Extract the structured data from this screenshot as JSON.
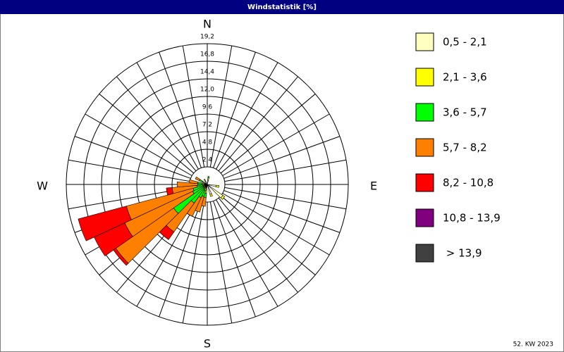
{
  "chart_data": {
    "type": "windrose",
    "title": "Windstatistik [%]",
    "footer": "52. KW 2023",
    "directions": {
      "north": "N",
      "east": "E",
      "south": "S",
      "west": "W"
    },
    "x": [
      10,
      100,
      130,
      160,
      190,
      200,
      210,
      220,
      230,
      240,
      250,
      260,
      270,
      280,
      300,
      330
    ],
    "sector_width": 10,
    "rlim": [
      0,
      19.2
    ],
    "rticks": [
      {
        "value": 2.4,
        "label": "2,4"
      },
      {
        "value": 4.8,
        "label": "4,8"
      },
      {
        "value": 7.2,
        "label": "7,2"
      },
      {
        "value": 9.6,
        "label": "9,6"
      },
      {
        "value": 12.0,
        "label": "12,0"
      },
      {
        "value": 14.4,
        "label": "14,4"
      },
      {
        "value": 16.8,
        "label": "16,8"
      },
      {
        "value": 19.2,
        "label": "19,2"
      }
    ],
    "spokes": 36,
    "series": [
      {
        "name": "0,5 - 2,1",
        "color": "#ffffc0",
        "values": [
          0.6,
          1.2,
          2.6,
          1.4,
          0.8,
          0.5,
          0.4,
          0.3,
          0.3,
          0.3,
          0.3,
          0.3,
          0.4,
          0.4,
          0.4,
          0.5
        ]
      },
      {
        "name": "2,1 - 3,6",
        "color": "#ffff00",
        "values": [
          0.3,
          0.4,
          0.3,
          0.3,
          0.4,
          0.4,
          0.4,
          0.4,
          0.3,
          0.3,
          0.3,
          0.3,
          0.3,
          0.3,
          0.3,
          0.3
        ]
      },
      {
        "name": "3,6 - 5,7",
        "color": "#00ff00",
        "values": [
          0.2,
          0,
          0,
          0,
          0.6,
          0.8,
          1.2,
          2.4,
          5.0,
          1.6,
          1.4,
          0.8,
          0.6,
          0.6,
          0.5,
          0
        ]
      },
      {
        "name": "5,7 - 8,2",
        "color": "#ff8000",
        "values": [
          0,
          0,
          0,
          0,
          1.2,
          2.2,
          2.8,
          4.8,
          9.6,
          10.2,
          9.4,
          3.4,
          2.8,
          1.2,
          0.6,
          0
        ]
      },
      {
        "name": "8,2 - 10,8",
        "color": "#ff0000",
        "values": [
          0,
          0,
          0,
          0,
          0,
          0,
          0,
          1.3,
          0.4,
          4.6,
          6.8,
          0.8,
          0,
          0,
          0,
          0
        ]
      },
      {
        "name": "10,8 - 13,9",
        "color": "#800080",
        "values": [
          0,
          0,
          0,
          0,
          0,
          0,
          0,
          0,
          0,
          0,
          0,
          0,
          0,
          0,
          0,
          0
        ]
      },
      {
        "name": " > 13,9",
        "color": "#404040",
        "values": [
          0,
          0,
          0,
          0,
          0,
          0,
          0,
          0,
          0,
          0,
          0,
          0,
          0,
          0,
          0,
          0
        ]
      }
    ]
  }
}
